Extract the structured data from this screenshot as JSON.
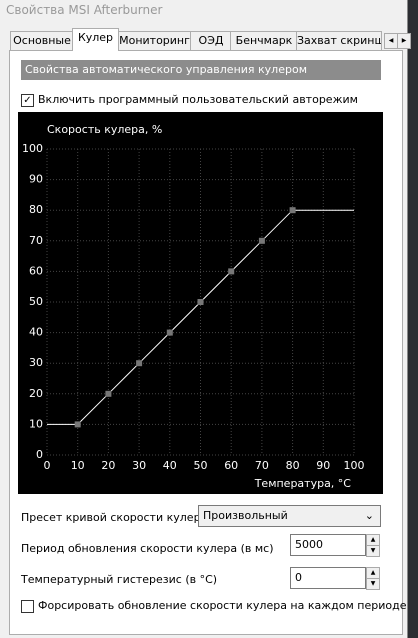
{
  "window": {
    "title": "Свойства MSI Afterburner"
  },
  "tabs": [
    "Основные",
    "Кулер",
    "Мониторинг",
    "ОЭД",
    "Бенчмарк",
    "Захват скринш"
  ],
  "section": {
    "title": "Свойства автоматического управления кулером"
  },
  "auto_mode": {
    "label": "Включить программный пользовательский авторежим",
    "checked": true
  },
  "chart_data": {
    "type": "line",
    "title": "Скорость кулера, %",
    "x_label": "Температура, °C",
    "x": [
      0,
      10,
      20,
      30,
      40,
      50,
      60,
      70,
      80,
      100
    ],
    "series": [
      {
        "name": "Скорость кулера",
        "color": "#ffffff",
        "values": [
          10,
          10,
          20,
          30,
          40,
          50,
          60,
          70,
          80,
          80
        ]
      }
    ],
    "marker_color": "#777777",
    "xlim": [
      0,
      100
    ],
    "xticks": [
      0,
      10,
      20,
      30,
      40,
      50,
      60,
      70,
      80,
      90,
      100
    ],
    "ylim": [
      0,
      100
    ],
    "yticks": [
      0,
      10,
      20,
      30,
      40,
      50,
      60,
      70,
      80,
      90,
      100
    ],
    "grid": true
  },
  "preset": {
    "label": "Пресет кривой скорости кулера",
    "value": "Произвольный"
  },
  "period": {
    "label": "Период обновления скорости кулера (в мс)",
    "value": 5000
  },
  "hysteresis": {
    "label": "Температурный гистерезис (в °C)",
    "value": 0
  },
  "force_update": {
    "label": "Форсировать обновление скорости кулера на каждом периоде",
    "checked": false
  }
}
